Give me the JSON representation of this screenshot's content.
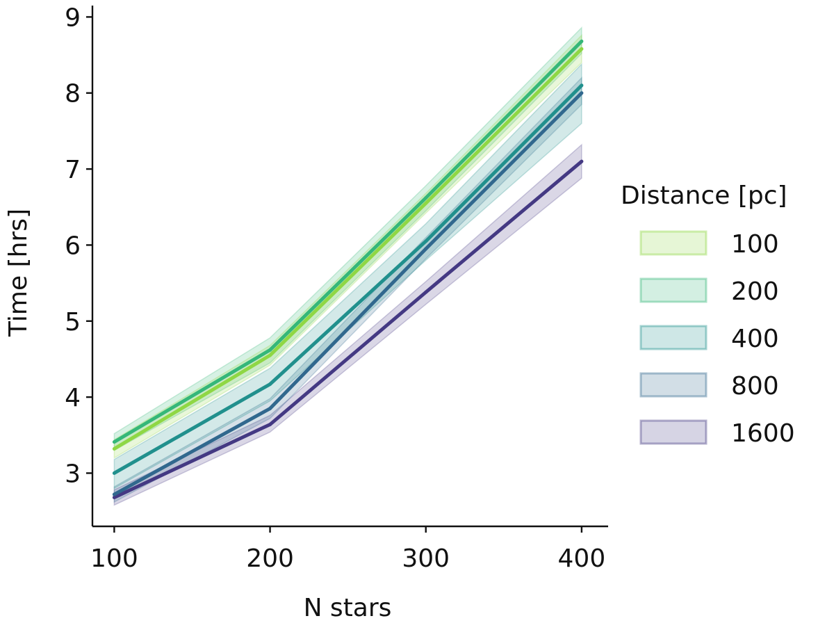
{
  "chart_data": {
    "type": "line",
    "xlabel": "N stars",
    "ylabel": "Time [hrs]",
    "xlim": [
      86,
      417
    ],
    "ylim": [
      2.3,
      9.15
    ],
    "x": [
      100,
      200,
      300,
      400
    ],
    "xticks": [
      "100",
      "200",
      "300",
      "400"
    ],
    "yticks": [
      "3",
      "4",
      "5",
      "6",
      "7",
      "8",
      "9"
    ],
    "grid": false,
    "legend": {
      "title": "Distance [pc]",
      "placement": "right"
    },
    "series": [
      {
        "name": "100",
        "color": "#8fd744",
        "values": [
          3.32,
          4.55,
          6.55,
          8.58
        ],
        "lower": [
          3.2,
          4.42,
          6.42,
          8.4
        ],
        "upper": [
          3.44,
          4.68,
          6.68,
          8.76
        ]
      },
      {
        "name": "200",
        "color": "#35b779",
        "values": [
          3.41,
          4.62,
          6.62,
          8.68
        ],
        "lower": [
          3.3,
          4.45,
          6.45,
          8.52
        ],
        "upper": [
          3.52,
          4.78,
          6.78,
          8.86
        ]
      },
      {
        "name": "400",
        "color": "#21908d",
        "values": [
          3.0,
          4.17,
          6.05,
          8.1
        ],
        "lower": [
          2.8,
          3.95,
          5.8,
          7.6
        ],
        "upper": [
          3.18,
          4.38,
          6.28,
          8.38
        ]
      },
      {
        "name": "800",
        "color": "#31688e",
        "values": [
          2.72,
          3.85,
          5.95,
          8.0
        ],
        "lower": [
          2.62,
          3.72,
          5.82,
          7.85
        ],
        "upper": [
          2.82,
          3.98,
          6.1,
          8.2
        ]
      },
      {
        "name": "1600",
        "color": "#443983",
        "values": [
          2.68,
          3.64,
          5.38,
          7.1
        ],
        "lower": [
          2.58,
          3.54,
          5.22,
          6.88
        ],
        "upper": [
          2.78,
          3.76,
          5.52,
          7.32
        ]
      }
    ]
  }
}
